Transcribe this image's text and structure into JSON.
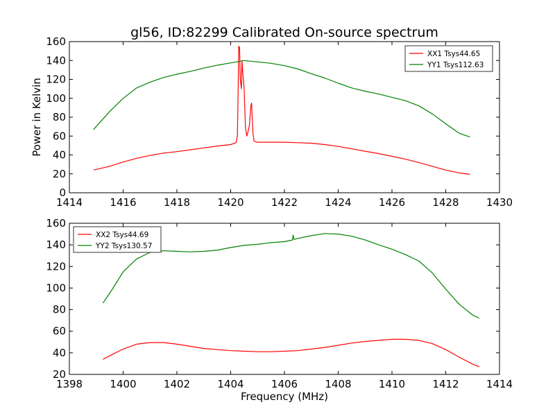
{
  "figure": {
    "title": "gl56, ID:82299 Calibrated On-source spectrum"
  },
  "chart_data": [
    {
      "type": "line",
      "ylabel": "Power in Kelvin",
      "xlabel": "",
      "xlim": [
        1414,
        1430
      ],
      "ylim": [
        0,
        160
      ],
      "xticks": [
        "1414",
        "1416",
        "1418",
        "1420",
        "1422",
        "1424",
        "1426",
        "1428",
        "1430"
      ],
      "yticks": [
        "0",
        "20",
        "40",
        "60",
        "80",
        "100",
        "120",
        "140",
        "160"
      ],
      "grid": false,
      "legend": "top-right",
      "series": [
        {
          "name": "XX1 Tsys44.65",
          "color": "#ff0000",
          "x": [
            1414.9,
            1415.5,
            1416.0,
            1416.5,
            1417.0,
            1417.5,
            1418.0,
            1418.5,
            1419.0,
            1419.5,
            1420.0,
            1420.2,
            1420.25,
            1420.28,
            1420.3,
            1420.33,
            1420.36,
            1420.4,
            1420.42,
            1420.45,
            1420.5,
            1420.55,
            1420.6,
            1420.65,
            1420.7,
            1420.75,
            1420.78,
            1420.8,
            1420.83,
            1420.87,
            1420.92,
            1421.0,
            1421.5,
            1422.0,
            1422.5,
            1423.0,
            1423.5,
            1424.0,
            1424.5,
            1425.0,
            1425.5,
            1426.0,
            1426.5,
            1427.0,
            1427.5,
            1428.0,
            1428.5,
            1428.9
          ],
          "y": [
            24,
            28,
            32.5,
            36.5,
            39.5,
            42,
            43.5,
            45.5,
            47.5,
            49.5,
            51,
            53,
            60,
            110,
            155,
            154,
            120,
            110,
            140,
            128,
            110,
            70,
            60,
            65,
            72,
            92,
            95,
            80,
            62,
            55,
            54,
            53.5,
            53.5,
            53.5,
            53,
            52.5,
            51,
            49,
            46.5,
            44,
            41.5,
            38.5,
            35.5,
            32,
            28,
            24,
            21,
            19.5
          ]
        },
        {
          "name": "YY1 Tsys112.63",
          "color": "#008000",
          "x": [
            1414.9,
            1415.5,
            1416.0,
            1416.5,
            1417.0,
            1417.5,
            1418.0,
            1418.5,
            1419.0,
            1419.5,
            1420.0,
            1420.5,
            1421.0,
            1421.5,
            1422.0,
            1422.5,
            1423.0,
            1423.5,
            1424.0,
            1424.5,
            1425.0,
            1425.5,
            1426.0,
            1426.5,
            1427.0,
            1427.5,
            1428.0,
            1428.5,
            1428.9
          ],
          "y": [
            67,
            86,
            100,
            111,
            117,
            122,
            125.5,
            128.5,
            132,
            135,
            137.5,
            140,
            138.5,
            137,
            134.5,
            131,
            126,
            121.5,
            116,
            111,
            107.5,
            104.5,
            101,
            97.5,
            92,
            83.5,
            73,
            63,
            59
          ]
        }
      ]
    },
    {
      "type": "line",
      "ylabel": "",
      "xlabel": "Frequency (MHz)",
      "xlim": [
        1398,
        1414
      ],
      "ylim": [
        20,
        160
      ],
      "xticks": [
        "1398",
        "1400",
        "1402",
        "1404",
        "1406",
        "1408",
        "1410",
        "1412",
        "1414"
      ],
      "yticks": [
        "20",
        "40",
        "60",
        "80",
        "100",
        "120",
        "140",
        "160"
      ],
      "grid": false,
      "legend": "top-left",
      "series": [
        {
          "name": "XX2 Tsys44.69",
          "color": "#ff0000",
          "x": [
            1399.25,
            1399.6,
            1400.0,
            1400.5,
            1401.0,
            1401.5,
            1402.0,
            1402.5,
            1403.0,
            1403.5,
            1404.0,
            1404.5,
            1405.0,
            1405.5,
            1406.0,
            1406.5,
            1407.0,
            1407.5,
            1408.0,
            1408.5,
            1409.0,
            1409.5,
            1410.0,
            1410.5,
            1411.0,
            1411.5,
            1412.0,
            1412.5,
            1413.0,
            1413.25
          ],
          "y": [
            34,
            38.5,
            43.5,
            48,
            49.5,
            49.5,
            48,
            46,
            44,
            43,
            42,
            41.5,
            41,
            41,
            41.5,
            42,
            43.5,
            45,
            47,
            49,
            50.5,
            51.5,
            52.5,
            52.5,
            51.5,
            48.5,
            43,
            36,
            29.5,
            27
          ]
        },
        {
          "name": "YY2 Tsys130.57",
          "color": "#008000",
          "x": [
            1399.25,
            1399.6,
            1400.0,
            1400.5,
            1401.0,
            1401.5,
            1402.0,
            1402.5,
            1403.0,
            1403.5,
            1404.0,
            1404.5,
            1405.0,
            1405.5,
            1406.0,
            1406.3,
            1406.32,
            1406.36,
            1406.5,
            1407.0,
            1407.5,
            1408.0,
            1408.5,
            1409.0,
            1409.5,
            1410.0,
            1410.5,
            1411.0,
            1411.5,
            1412.0,
            1412.5,
            1413.0,
            1413.25
          ],
          "y": [
            86,
            99,
            115,
            127,
            133,
            134.5,
            134,
            133.5,
            134,
            135,
            137.5,
            139.5,
            140.5,
            142,
            143,
            144.5,
            149,
            145,
            146,
            148.5,
            150.5,
            150,
            148,
            144.5,
            140,
            136,
            131,
            125,
            114,
            99,
            85,
            75,
            72
          ]
        }
      ]
    }
  ]
}
